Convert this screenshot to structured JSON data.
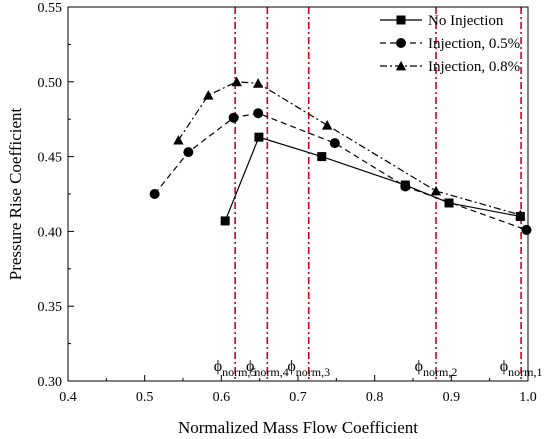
{
  "chart_data": {
    "type": "line",
    "xlabel": "Normalized Mass Flow Coefficient",
    "ylabel": "Pressure Rise Coefficient",
    "xlim": [
      0.4,
      1.0
    ],
    "ylim": [
      0.3,
      0.55
    ],
    "x_ticks": [
      "0.4",
      "0.5",
      "0.6",
      "0.7",
      "0.8",
      "0.9",
      "1.0"
    ],
    "y_ticks": [
      "0.30",
      "0.35",
      "0.40",
      "0.45",
      "0.50",
      "0.55"
    ],
    "grid": false,
    "legend_position": "top-right",
    "series": [
      {
        "name": "No Injection",
        "marker": "square",
        "line_style": "solid",
        "x": [
          0.605,
          0.649,
          0.731,
          0.84,
          0.897,
          0.99
        ],
        "y": [
          0.407,
          0.463,
          0.45,
          0.431,
          0.419,
          0.41
        ]
      },
      {
        "name": "Injection, 0.5%",
        "marker": "circle",
        "line_style": "dashed",
        "x": [
          0.513,
          0.557,
          0.616,
          0.648,
          0.748,
          0.84,
          0.998
        ],
        "y": [
          0.425,
          0.453,
          0.476,
          0.479,
          0.459,
          0.43,
          0.401
        ]
      },
      {
        "name": "Injection, 0.8%",
        "marker": "triangle",
        "line_style": "dash-dot",
        "x": [
          0.544,
          0.583,
          0.62,
          0.648,
          0.738,
          0.88,
          0.99
        ],
        "y": [
          0.461,
          0.491,
          0.5,
          0.499,
          0.471,
          0.427,
          0.411
        ]
      }
    ],
    "reference_lines": [
      {
        "x": 0.618,
        "label_base": "ϕ",
        "label_sub": "norm,5"
      },
      {
        "x": 0.66,
        "label_base": "ϕ",
        "label_sub": "norm,4"
      },
      {
        "x": 0.714,
        "label_base": "ϕ",
        "label_sub": "norm,3"
      },
      {
        "x": 0.88,
        "label_base": "ϕ",
        "label_sub": "norm,2"
      },
      {
        "x": 0.991,
        "label_base": "ϕ",
        "label_sub": "norm,1"
      }
    ],
    "reference_line_color": "#d0021b"
  }
}
